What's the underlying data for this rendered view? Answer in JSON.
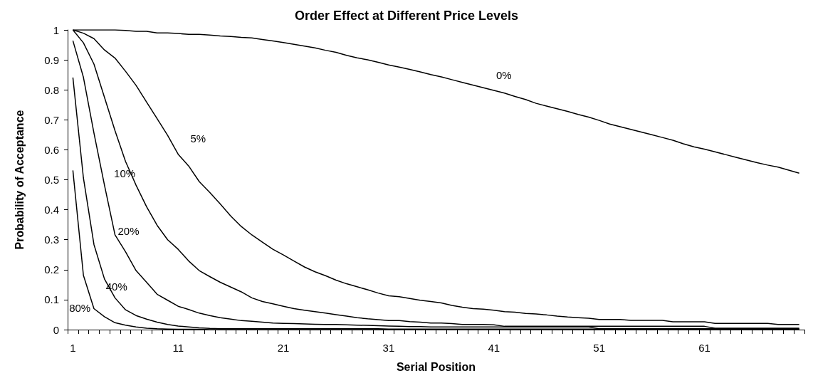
{
  "chart_data": {
    "type": "line",
    "title": "Order Effect at Different Price Levels",
    "xlabel": "Serial Position",
    "ylabel": "Probability of Acceptance",
    "categories": [
      "1",
      null,
      null,
      null,
      null,
      null,
      null,
      null,
      null,
      null,
      "11",
      null,
      null,
      null,
      null,
      null,
      null,
      null,
      null,
      null,
      "21",
      null,
      null,
      null,
      null,
      null,
      null,
      null,
      null,
      null,
      "31",
      null,
      null,
      null,
      null,
      null,
      null,
      null,
      null,
      null,
      "41",
      null,
      null,
      null,
      null,
      null,
      null,
      null,
      null,
      null,
      "51",
      null,
      null,
      null,
      null,
      null,
      null,
      null,
      null,
      null,
      "61",
      null,
      null,
      null,
      null,
      null,
      null,
      null,
      null,
      null
    ],
    "series": [
      {
        "name": "0%",
        "color": "#000000",
        "values": [
          1,
          1,
          1,
          1,
          1,
          0.998,
          0.995,
          0.995,
          0.99,
          0.99,
          0.988,
          0.985,
          0.985,
          0.983,
          0.98,
          0.978,
          0.975,
          0.973,
          0.968,
          0.963,
          0.958,
          0.952,
          0.946,
          0.94,
          0.932,
          0.925,
          0.915,
          0.907,
          0.9,
          0.892,
          0.883,
          0.876,
          0.868,
          0.86,
          0.851,
          0.843,
          0.834,
          0.825,
          0.816,
          0.807,
          0.798,
          0.789,
          0.778,
          0.768,
          0.755,
          0.746,
          0.737,
          0.728,
          0.718,
          0.709,
          0.698,
          0.686,
          0.677,
          0.668,
          0.659,
          0.65,
          0.641,
          0.632,
          0.62,
          0.61,
          0.602,
          0.593,
          0.584,
          0.575,
          0.566,
          0.557,
          0.549,
          0.542,
          0.532,
          0.522
        ]
      },
      {
        "name": "5%",
        "color": "#000000",
        "values": [
          1,
          0.989,
          0.971,
          0.933,
          0.906,
          0.862,
          0.815,
          0.759,
          0.704,
          0.648,
          0.585,
          0.546,
          0.494,
          0.458,
          0.419,
          0.379,
          0.344,
          0.316,
          0.292,
          0.268,
          0.249,
          0.229,
          0.209,
          0.193,
          0.18,
          0.165,
          0.153,
          0.143,
          0.133,
          0.122,
          0.113,
          0.11,
          0.104,
          0.098,
          0.094,
          0.089,
          0.081,
          0.075,
          0.07,
          0.068,
          0.065,
          0.06,
          0.058,
          0.054,
          0.052,
          0.049,
          0.045,
          0.042,
          0.04,
          0.038,
          0.034,
          0.034,
          0.034,
          0.031,
          0.031,
          0.031,
          0.031,
          0.026,
          0.026,
          0.026,
          0.026,
          0.021,
          0.021,
          0.021,
          0.021,
          0.021,
          0.021,
          0.017,
          0.017,
          0.017
        ]
      },
      {
        "name": "10%",
        "color": "#000000",
        "values": [
          1,
          0.957,
          0.886,
          0.775,
          0.664,
          0.561,
          0.482,
          0.41,
          0.348,
          0.3,
          0.268,
          0.229,
          0.197,
          0.177,
          0.158,
          0.142,
          0.126,
          0.106,
          0.094,
          0.086,
          0.078,
          0.07,
          0.065,
          0.06,
          0.055,
          0.05,
          0.045,
          0.04,
          0.036,
          0.033,
          0.03,
          0.03,
          0.027,
          0.025,
          0.022,
          0.022,
          0.02,
          0.017,
          0.017,
          0.017,
          0.016,
          0.011,
          0.011,
          0.011,
          0.011,
          0.011,
          0.011,
          0.011,
          0.011,
          0.011,
          0.011,
          0.011,
          0.011,
          0.011,
          0.011,
          0.011,
          0.011,
          0.011,
          0.011,
          0.011,
          0.011,
          0.005,
          0.005,
          0.005,
          0.005,
          0.005,
          0.005,
          0.005,
          0.005,
          0.005
        ]
      },
      {
        "name": "20%",
        "color": "#000000",
        "values": [
          0.964,
          0.842,
          0.656,
          0.482,
          0.316,
          0.26,
          0.197,
          0.158,
          0.118,
          0.098,
          0.078,
          0.067,
          0.055,
          0.047,
          0.04,
          0.035,
          0.03,
          0.028,
          0.025,
          0.022,
          0.021,
          0.02,
          0.019,
          0.018,
          0.017,
          0.017,
          0.016,
          0.015,
          0.014,
          0.013,
          0.012,
          0.011,
          0.01,
          0.01,
          0.009,
          0.009,
          0.009,
          0.009,
          0.009,
          0.009,
          0.009,
          0.009,
          0.009,
          0.009,
          0.009,
          0.009,
          0.009,
          0.009,
          0.009,
          0.009,
          0.003,
          0.003,
          0.003,
          0.003,
          0.003,
          0.003,
          0.003,
          0.003,
          0.003,
          0.003,
          0.003,
          0.003,
          0.003,
          0.003,
          0.003,
          0.003,
          0.003,
          0.003,
          0.003,
          0.003
        ]
      },
      {
        "name": "40%",
        "color": "#000000",
        "values": [
          0.841,
          0.506,
          0.284,
          0.169,
          0.106,
          0.066,
          0.047,
          0.035,
          0.025,
          0.017,
          0.012,
          0.009,
          0.006,
          0.004,
          0.003,
          0.003,
          0.003,
          0.003,
          0.003,
          0.003,
          0.003,
          0.003,
          0.003,
          0.003,
          0.003,
          0.003,
          0.003,
          0.003,
          0.003,
          0.003,
          0.002,
          0.002,
          0.002,
          0.002,
          0.002,
          0.002,
          0.002,
          0.002,
          0.002,
          0.002,
          0.002,
          0.002,
          0.002,
          0.002,
          0.002,
          0.002,
          0.002,
          0.002,
          0.002,
          0.002,
          0.002,
          0.002,
          0.002,
          0.002,
          0.002,
          0.002,
          0.002,
          0.002,
          0.002,
          0.002,
          0.002,
          0.002,
          0.002,
          0.002,
          0.002,
          0.002,
          0.002,
          0.002,
          0.002,
          0.002
        ]
      },
      {
        "name": "80%",
        "color": "#000000",
        "values": [
          0.531,
          0.181,
          0.07,
          0.043,
          0.023,
          0.015,
          0.009,
          0.005,
          0.003,
          0.002,
          0.001,
          0.001,
          0.001,
          0,
          0,
          0,
          0,
          0,
          0,
          0,
          0,
          0,
          0,
          0,
          0,
          0,
          0,
          0,
          0,
          0,
          0,
          0,
          0,
          0,
          0,
          0,
          0,
          0,
          0,
          0,
          0,
          0,
          0,
          0,
          0,
          0,
          0,
          0,
          0,
          0,
          0,
          0,
          0,
          0,
          0,
          0,
          0,
          0,
          0,
          0,
          0,
          0,
          0,
          0,
          0,
          0,
          0,
          0,
          0,
          0
        ]
      }
    ],
    "ylim": [
      0,
      1
    ],
    "yticks": [
      0,
      0.1,
      0.2,
      0.3,
      0.4,
      0.5,
      0.6,
      0.7,
      0.8,
      0.9,
      1
    ],
    "grid": false,
    "legend": false,
    "marker": "none",
    "line_style": "solid"
  }
}
